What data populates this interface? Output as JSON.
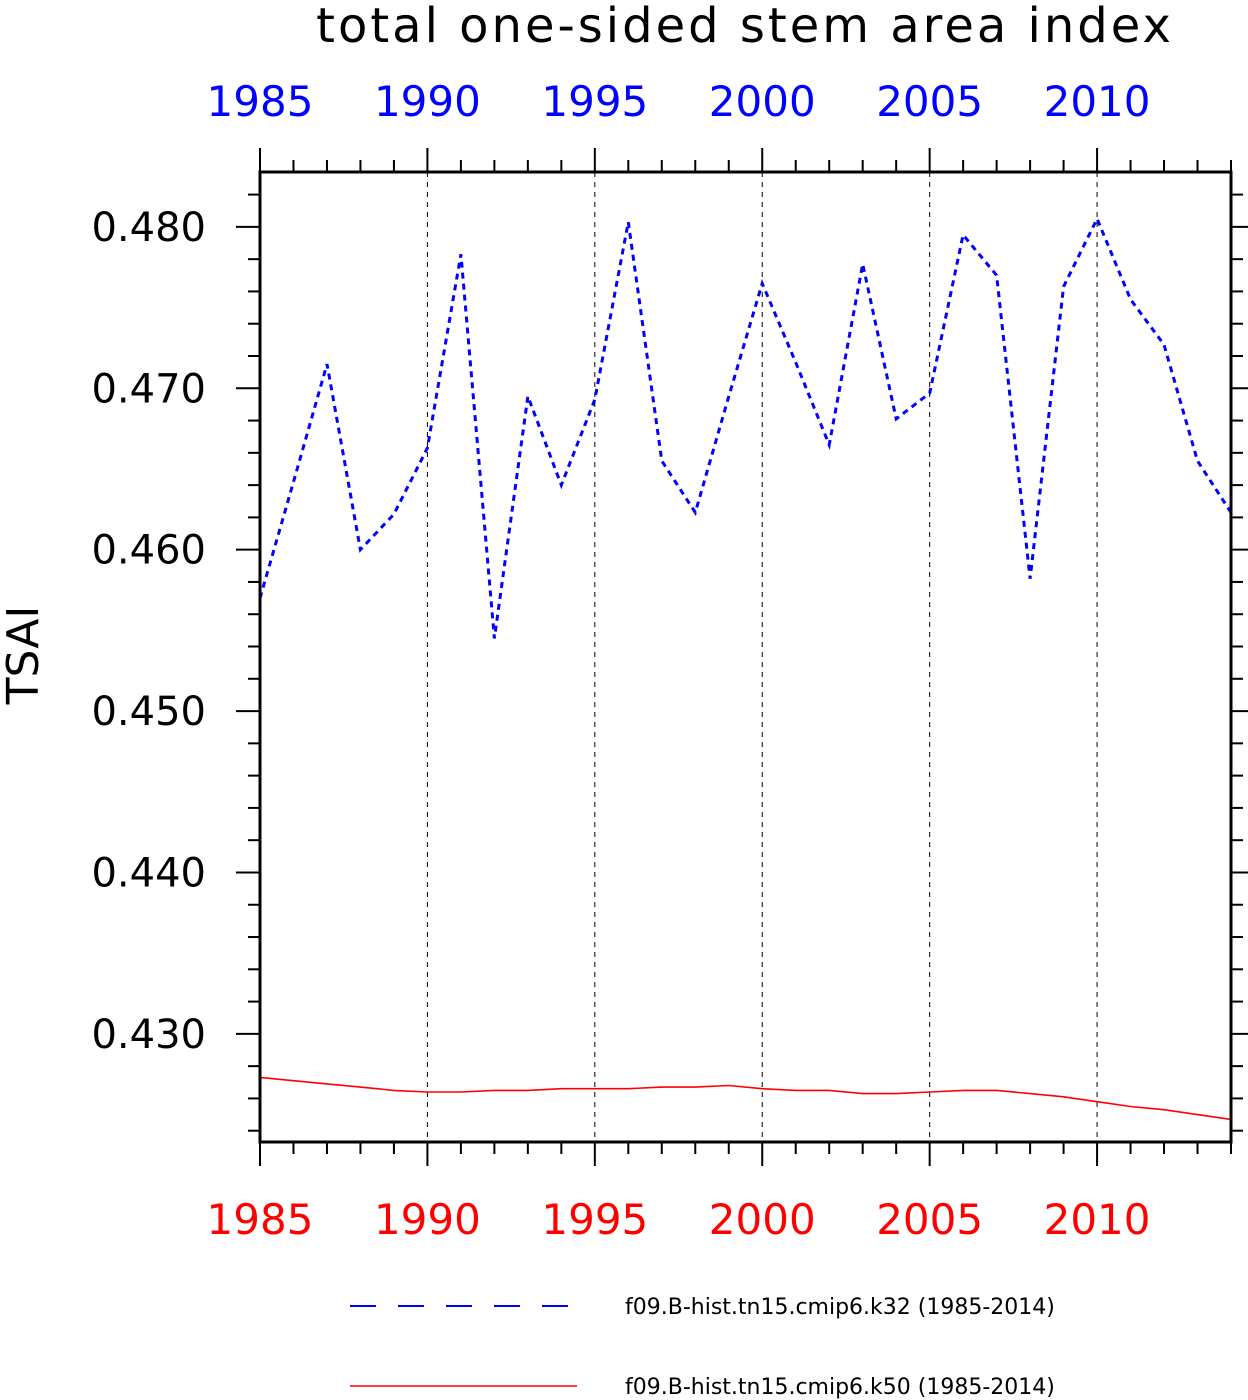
{
  "chart_data": {
    "type": "line",
    "title": "total one-sided stem area index",
    "ylabel": "TSAI",
    "xlabel": "",
    "xlim": [
      1985,
      2014
    ],
    "ylim": [
      0.4233,
      0.4834
    ],
    "x_ticks": [
      1985,
      1990,
      1995,
      2000,
      2005,
      2010
    ],
    "x_tick_labels": [
      "1985",
      "1990",
      "1995",
      "2000",
      "2005",
      "2010"
    ],
    "y_ticks": [
      0.43,
      0.44,
      0.45,
      0.46,
      0.47,
      0.48
    ],
    "y_tick_labels": [
      "0.430",
      "0.440",
      "0.450",
      "0.460",
      "0.470",
      "0.480"
    ],
    "grid": "vertical dashed at major x ticks",
    "top_axis_color": "#0000ff",
    "bottom_axis_color": "#ff0000",
    "legend_position": "bottom",
    "x": [
      1985,
      1986,
      1987,
      1988,
      1989,
      1990,
      1991,
      1992,
      1993,
      1994,
      1995,
      1996,
      1997,
      1998,
      1999,
      2000,
      2001,
      2002,
      2003,
      2004,
      2005,
      2006,
      2007,
      2008,
      2009,
      2010,
      2011,
      2012,
      2013,
      2014
    ],
    "series": [
      {
        "name": "f09.B-hist.tn15.cmip6.k32 (1985-2014)",
        "color": "#0000ff",
        "style": "dashed",
        "values": [
          0.457,
          0.4642,
          0.4715,
          0.46,
          0.4622,
          0.4663,
          0.4783,
          0.4545,
          0.4695,
          0.464,
          0.4693,
          0.4803,
          0.4655,
          0.4623,
          0.4695,
          0.4765,
          0.4716,
          0.4665,
          0.4777,
          0.4681,
          0.4697,
          0.4795,
          0.477,
          0.4582,
          0.4763,
          0.4805,
          0.4755,
          0.4727,
          0.4655,
          0.4623
        ]
      },
      {
        "name": "f09.B-hist.tn15.cmip6.k50 (1985-2014)",
        "color": "#ff0000",
        "style": "solid",
        "values": [
          0.4273,
          0.4271,
          0.4269,
          0.4267,
          0.4265,
          0.4264,
          0.4264,
          0.4265,
          0.4265,
          0.4266,
          0.4266,
          0.4266,
          0.4267,
          0.4267,
          0.4268,
          0.4266,
          0.4265,
          0.4265,
          0.4263,
          0.4263,
          0.4264,
          0.4265,
          0.4265,
          0.4263,
          0.4261,
          0.4258,
          0.4255,
          0.4253,
          0.425,
          0.4247
        ]
      }
    ]
  }
}
